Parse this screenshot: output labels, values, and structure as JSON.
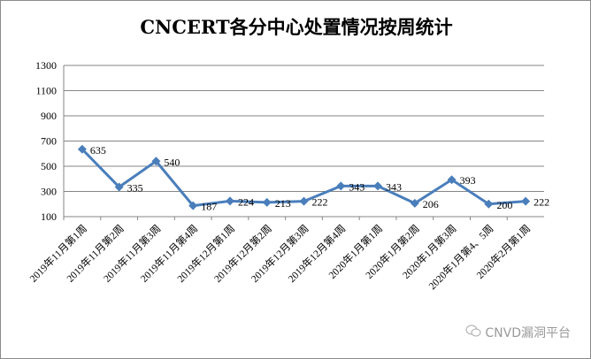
{
  "chart_data": {
    "type": "line",
    "title": "CNCERT各分中心处置情况按周统计",
    "categories": [
      "2019年11月第1周",
      "2019年11月第2周",
      "2019年11月第3周",
      "2019年11月第4周",
      "2019年12月第1周",
      "2019年12月第2周",
      "2019年12月第3周",
      "2019年12月第4周",
      "2020年1月第1周",
      "2020年1月第2周",
      "2020年1月第3周",
      "2020年1月第4、5周",
      "2020年2月第1周"
    ],
    "values": [
      635,
      335,
      540,
      187,
      224,
      213,
      222,
      343,
      343,
      206,
      393,
      200,
      222
    ],
    "ylim": [
      100,
      1300
    ],
    "yticks": [
      100,
      300,
      500,
      700,
      900,
      1100,
      1300
    ],
    "grid": true,
    "legend": "none",
    "color": "#4a7ebb",
    "marker": "diamond"
  },
  "watermark": {
    "text": "CNVD漏洞平台",
    "icon": "wechat-icon"
  }
}
